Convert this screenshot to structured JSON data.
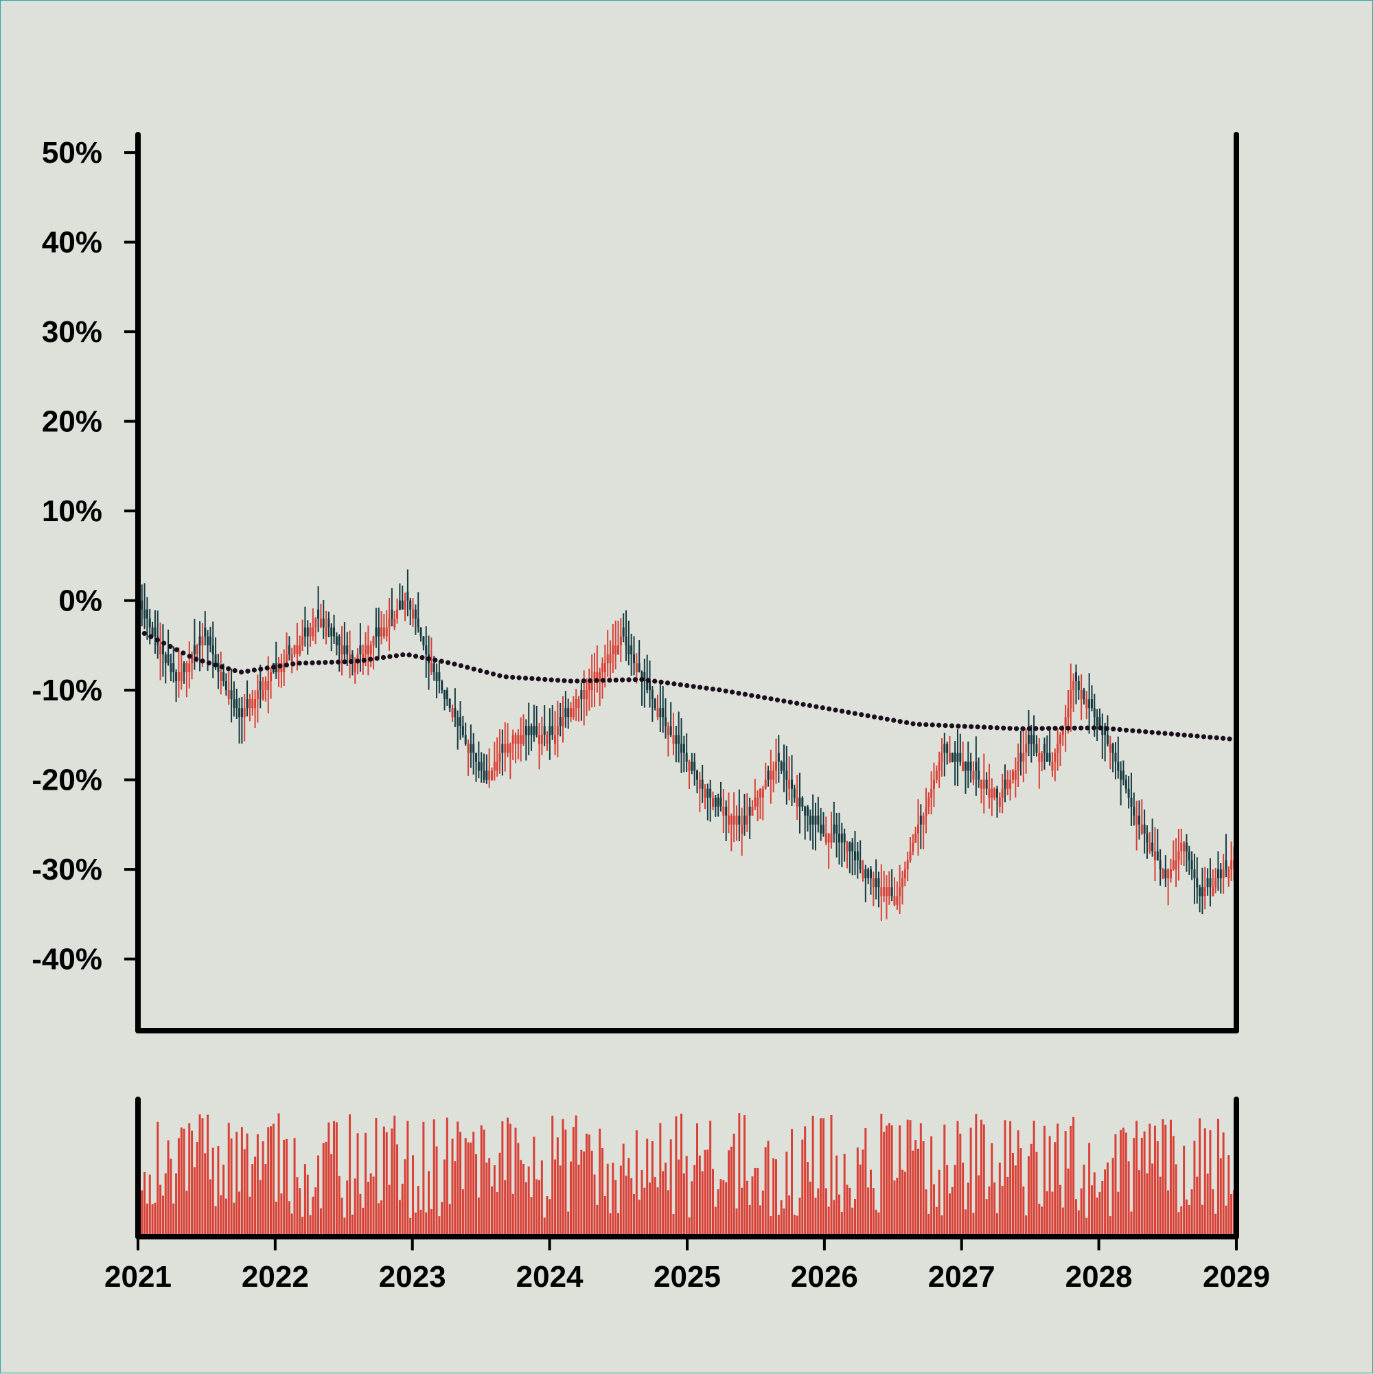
{
  "chart_data": {
    "type": "candlestick",
    "title": "",
    "xlabel": "",
    "ylabel": "",
    "ylim": [
      -0.48,
      0.52
    ],
    "x_range": [
      "2021-01-01",
      "2029-01-01"
    ],
    "y_ticks": [
      {
        "value": 0.5,
        "label": "50%"
      },
      {
        "value": 0.4,
        "label": "40%"
      },
      {
        "value": 0.3,
        "label": "30%"
      },
      {
        "value": 0.2,
        "label": "20%"
      },
      {
        "value": 0.1,
        "label": "10%"
      },
      {
        "value": 0.0,
        "label": "0%"
      },
      {
        "value": -0.1,
        "label": "-10%"
      },
      {
        "value": -0.2,
        "label": "-20%"
      },
      {
        "value": -0.3,
        "label": "-30%"
      },
      {
        "value": -0.4,
        "label": "-40%"
      }
    ],
    "x_ticks": [
      {
        "value": "2021-01-01",
        "label": "2021"
      },
      {
        "value": "2022-01-01",
        "label": "2022"
      },
      {
        "value": "2023-01-01",
        "label": "2023"
      },
      {
        "value": "2024-01-01",
        "label": "2024"
      },
      {
        "value": "2025-01-01",
        "label": "2025"
      },
      {
        "value": "2026-01-01",
        "label": "2026"
      },
      {
        "value": "2027-01-01",
        "label": "2027"
      },
      {
        "value": "2028-01-01",
        "label": "2028"
      },
      {
        "value": "2029-01-01",
        "label": "2029"
      }
    ],
    "price_path": [
      {
        "date": "2021-01-01",
        "close": 0.0
      },
      {
        "date": "2021-04-15",
        "close": -0.09
      },
      {
        "date": "2021-07-01",
        "close": -0.04
      },
      {
        "date": "2021-10-01",
        "close": -0.13
      },
      {
        "date": "2022-01-01",
        "close": -0.08
      },
      {
        "date": "2022-05-01",
        "close": -0.02
      },
      {
        "date": "2022-08-01",
        "close": -0.07
      },
      {
        "date": "2022-12-25",
        "close": 0.0
      },
      {
        "date": "2023-03-01",
        "close": -0.08
      },
      {
        "date": "2023-07-15",
        "close": -0.2
      },
      {
        "date": "2023-10-01",
        "close": -0.15
      },
      {
        "date": "2024-01-15",
        "close": -0.15
      },
      {
        "date": "2024-07-15",
        "close": -0.04
      },
      {
        "date": "2024-10-15",
        "close": -0.12
      },
      {
        "date": "2025-03-01",
        "close": -0.22
      },
      {
        "date": "2025-06-01",
        "close": -0.25
      },
      {
        "date": "2025-09-01",
        "close": -0.18
      },
      {
        "date": "2025-12-01",
        "close": -0.25
      },
      {
        "date": "2026-03-01",
        "close": -0.27
      },
      {
        "date": "2026-05-01",
        "close": -0.31
      },
      {
        "date": "2026-07-15",
        "close": -0.33
      },
      {
        "date": "2026-11-15",
        "close": -0.17
      },
      {
        "date": "2027-02-01",
        "close": -0.19
      },
      {
        "date": "2027-04-15",
        "close": -0.22
      },
      {
        "date": "2027-07-01",
        "close": -0.16
      },
      {
        "date": "2027-09-01",
        "close": -0.18
      },
      {
        "date": "2027-11-01",
        "close": -0.09
      },
      {
        "date": "2028-02-01",
        "close": -0.16
      },
      {
        "date": "2028-04-01",
        "close": -0.23
      },
      {
        "date": "2028-07-01",
        "close": -0.31
      },
      {
        "date": "2028-08-15",
        "close": -0.27
      },
      {
        "date": "2028-10-01",
        "close": -0.33
      },
      {
        "date": "2028-12-31",
        "close": -0.29
      }
    ],
    "moving_average": [
      {
        "date": "2021-01-01",
        "value": -0.033
      },
      {
        "date": "2021-06-01",
        "value": -0.065
      },
      {
        "date": "2021-10-01",
        "value": -0.08
      },
      {
        "date": "2022-03-01",
        "value": -0.07
      },
      {
        "date": "2022-08-01",
        "value": -0.068
      },
      {
        "date": "2022-12-15",
        "value": -0.06
      },
      {
        "date": "2023-04-15",
        "value": -0.07
      },
      {
        "date": "2023-09-01",
        "value": -0.085
      },
      {
        "date": "2024-03-01",
        "value": -0.09
      },
      {
        "date": "2024-09-01",
        "value": -0.088
      },
      {
        "date": "2025-04-01",
        "value": -0.1
      },
      {
        "date": "2026-01-01",
        "value": -0.12
      },
      {
        "date": "2026-09-01",
        "value": -0.138
      },
      {
        "date": "2027-06-01",
        "value": -0.143
      },
      {
        "date": "2028-01-01",
        "value": -0.142
      },
      {
        "date": "2028-12-31",
        "value": -0.155
      }
    ],
    "colors": {
      "background": "#dde1da",
      "up": "#d94036",
      "down": "#163a40",
      "moving_average": "#1a0e1c",
      "volume": "#d94036",
      "axes": "#000000"
    },
    "volume_panel": true,
    "grid": false
  }
}
